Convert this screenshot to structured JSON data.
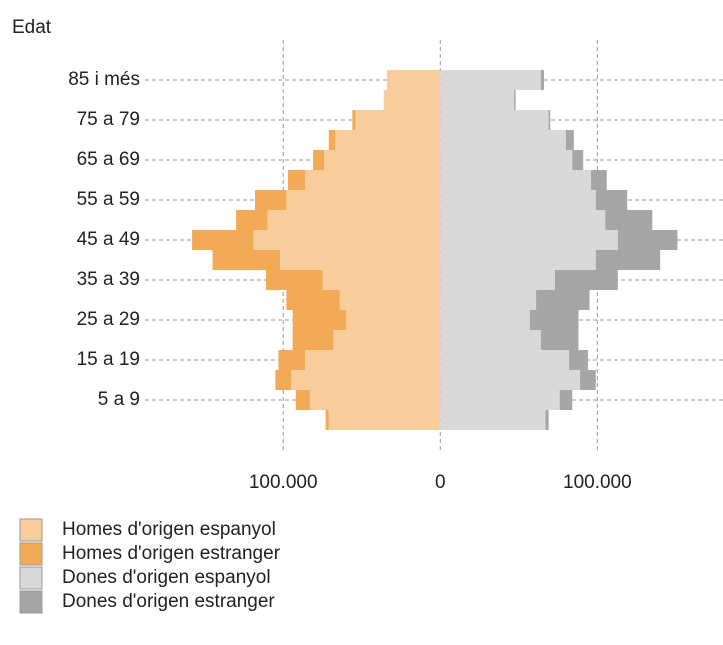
{
  "chart_data": {
    "type": "bar",
    "orientation": "horizontal",
    "stacked": true,
    "y_label": "Edat",
    "categories": [
      null,
      "5 a 9",
      null,
      "15 a 19",
      null,
      "25 a 29",
      null,
      "35 a 39",
      null,
      "45 a 49",
      null,
      "55 a 59",
      null,
      "65 a 69",
      null,
      "75 a 79",
      null,
      "85 i més"
    ],
    "series": [
      {
        "name": "Homes d'origen espanyol",
        "color": "#f8cc9b",
        "values": [
          -71000,
          -83000,
          -95000,
          -86000,
          -68000,
          -60000,
          -64000,
          -75000,
          -102000,
          -119000,
          -110000,
          -98000,
          -86000,
          -74000,
          -67000,
          -54000,
          -36000,
          -34000
        ]
      },
      {
        "name": "Homes d'origen estranger",
        "color": "#f2aa56",
        "values": [
          -2000,
          -9000,
          -10000,
          -17000,
          -26000,
          -34000,
          -34000,
          -36000,
          -43000,
          -39000,
          -20000,
          -20000,
          -11000,
          -7000,
          -4000,
          -2000,
          0,
          0
        ]
      },
      {
        "name": "Dones d'origen espanyol",
        "color": "#d9d9d9",
        "values": [
          67000,
          76000,
          89000,
          82000,
          64000,
          57000,
          61000,
          73000,
          99000,
          113000,
          105000,
          99000,
          96000,
          84000,
          80000,
          69000,
          47000,
          64000
        ]
      },
      {
        "name": "Dones d'origen estranger",
        "color": "#a6a6a6",
        "values": [
          2000,
          8000,
          10000,
          12000,
          24000,
          31000,
          34000,
          40000,
          41000,
          38000,
          30000,
          20000,
          10000,
          7000,
          5000,
          1000,
          1000,
          2000
        ]
      }
    ],
    "xlim": [
      -188000,
      180000
    ],
    "xticks": [
      {
        "value": -100000,
        "label": "100.000"
      },
      0,
      {
        "value": 100000,
        "label": "100.000"
      }
    ],
    "grid": true
  }
}
